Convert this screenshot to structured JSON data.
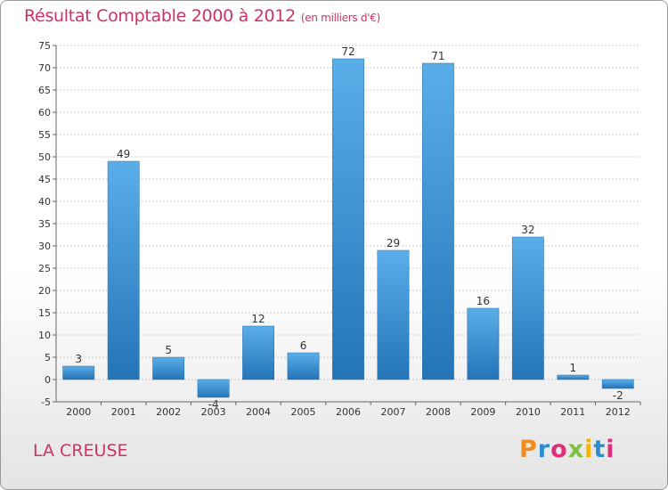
{
  "chart_data": {
    "type": "bar",
    "title": "Résultat Comptable 2000 à 2012",
    "subtitle": "(en milliers d'€)",
    "categories": [
      "2000",
      "2001",
      "2002",
      "2003",
      "2004",
      "2005",
      "2006",
      "2007",
      "2008",
      "2009",
      "2010",
      "2011",
      "2012"
    ],
    "values": [
      3,
      49,
      5,
      -4,
      12,
      6,
      72,
      29,
      71,
      16,
      32,
      1,
      -2
    ],
    "ylim": [
      -5,
      75
    ],
    "yticks": [
      -5,
      0,
      5,
      10,
      15,
      20,
      25,
      30,
      35,
      40,
      45,
      50,
      55,
      60,
      65,
      70,
      75
    ],
    "grid": true,
    "bar_color": "#3a8fd4"
  },
  "footer": {
    "region": "LA CREUSE",
    "logo": [
      "P",
      "r",
      "o",
      "x",
      "i",
      "t",
      "i"
    ],
    "logo_colors": [
      "#f08c1e",
      "#2a8fd0",
      "#e02f7a",
      "#7cc242",
      "#f5b400",
      "#2a8fd0",
      "#e02f7a"
    ]
  }
}
